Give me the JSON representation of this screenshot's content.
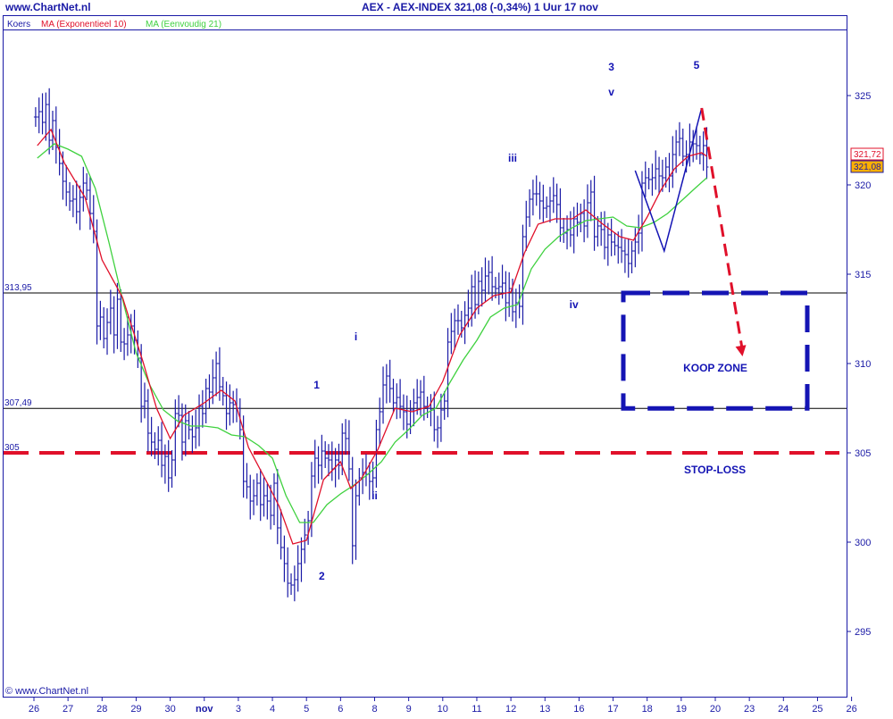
{
  "header": {
    "site": "www.ChartNet.nl",
    "title": "AEX - AEX-INDEX    321,08 (-0,34%)    1 Uur  17 nov"
  },
  "footer": {
    "copyright": "© www.ChartNet.nl"
  },
  "chart_data": {
    "type": "line",
    "legend": [
      {
        "label": "Koers",
        "color": "#1a1aa6"
      },
      {
        "label": "MA (Exponentieel 10)",
        "color": "#e0102a"
      },
      {
        "label": "MA (Eenvoudig 21)",
        "color": "#3fd13f"
      }
    ],
    "x_tick_labels": [
      "26",
      "27",
      "28",
      "29",
      "30",
      "nov",
      "3",
      "4",
      "5",
      "6",
      "8",
      "9",
      "10",
      "11",
      "12",
      "13",
      "16",
      "17",
      "18",
      "19",
      "20",
      "23",
      "24",
      "25",
      "26"
    ],
    "y_ticks": [
      295,
      300,
      305,
      310,
      315,
      320,
      325
    ],
    "ylim": [
      291,
      328.5
    ],
    "price_boxes": [
      {
        "value": "321,72",
        "color": "#e0102a",
        "fill": "#ffffff"
      },
      {
        "value": "321,08",
        "color": "#1a1aa6",
        "fill": "#ffb000"
      }
    ],
    "horizontal_levels": [
      {
        "value": 313.95,
        "label": "313,95",
        "color": "#000000"
      },
      {
        "value": 307.49,
        "label": "307,49",
        "color": "#000000"
      },
      {
        "value": 305,
        "label": "305",
        "color": "#e0102a",
        "dashed": true,
        "text": "STOP-LOSS"
      }
    ],
    "wave_labels": [
      {
        "text": "1",
        "x": 8.3,
        "y": 308.6
      },
      {
        "text": "2",
        "x": 8.45,
        "y": 297.9
      },
      {
        "text": "3",
        "x": 16.95,
        "y": 326.4
      },
      {
        "text": "5",
        "x": 19.45,
        "y": 326.5
      },
      {
        "text": "i",
        "x": 9.45,
        "y": 311.3
      },
      {
        "text": "ii",
        "x": 10.0,
        "y": 302.4
      },
      {
        "text": "iii",
        "x": 14.05,
        "y": 321.3
      },
      {
        "text": "iv",
        "x": 15.85,
        "y": 313.1
      },
      {
        "text": "v",
        "x": 16.95,
        "y": 325.0
      }
    ],
    "koop_zone": {
      "label": "KOOP ZONE",
      "x_range": [
        17.3,
        22.7
      ],
      "y_range": [
        307.49,
        313.95
      ],
      "color": "#1414b4"
    },
    "projection": [
      [
        17.65,
        320.8
      ],
      [
        18.5,
        316.3
      ],
      [
        19.6,
        324.3
      ]
    ],
    "projection_arrow": [
      [
        19.6,
        324.3
      ],
      [
        20.8,
        310.4
      ]
    ],
    "price_series": [
      [
        0.05,
        323.8
      ],
      [
        0.15,
        324.1
      ],
      [
        0.25,
        323.5
      ],
      [
        0.35,
        324.5
      ],
      [
        0.45,
        322.5
      ],
      [
        0.55,
        323.6
      ],
      [
        0.65,
        322.1
      ],
      [
        0.75,
        321.2
      ],
      [
        0.85,
        320.2
      ],
      [
        0.95,
        319.6
      ],
      [
        1.05,
        319.1
      ],
      [
        1.15,
        319.2
      ],
      [
        1.25,
        318.5
      ],
      [
        1.35,
        319.3
      ],
      [
        1.45,
        320.1
      ],
      [
        1.55,
        319.7
      ],
      [
        1.65,
        318.4
      ],
      [
        1.75,
        317.4
      ],
      [
        1.85,
        312.1
      ],
      [
        1.95,
        312.6
      ],
      [
        2.05,
        311.4
      ],
      [
        2.15,
        312.3
      ],
      [
        2.25,
        313.1
      ],
      [
        2.35,
        311.6
      ],
      [
        2.45,
        313.6
      ],
      [
        2.55,
        311.2
      ],
      [
        2.65,
        311.1
      ],
      [
        2.75,
        311.6
      ],
      [
        2.85,
        312.1
      ],
      [
        2.95,
        311.3
      ],
      [
        3.05,
        310.3
      ],
      [
        3.15,
        307.6
      ],
      [
        3.25,
        307.9
      ],
      [
        3.35,
        306.1
      ],
      [
        3.45,
        305.6
      ],
      [
        3.55,
        305.2
      ],
      [
        3.65,
        305.7
      ],
      [
        3.75,
        304.3
      ],
      [
        3.85,
        304.8
      ],
      [
        3.95,
        303.6
      ],
      [
        4.05,
        304.6
      ],
      [
        4.15,
        307.2
      ],
      [
        4.25,
        307.1
      ],
      [
        4.35,
        305.6
      ],
      [
        4.45,
        306.8
      ],
      [
        4.55,
        306.3
      ],
      [
        4.65,
        305.9
      ],
      [
        4.75,
        306.4
      ],
      [
        4.85,
        307.6
      ],
      [
        4.95,
        307.2
      ],
      [
        5.05,
        308.6
      ],
      [
        5.15,
        308.4
      ],
      [
        5.25,
        309.2
      ],
      [
        5.35,
        310.0
      ],
      [
        5.45,
        308.7
      ],
      [
        5.55,
        308.2
      ],
      [
        5.65,
        307.2
      ],
      [
        5.75,
        307.8
      ],
      [
        5.85,
        307.7
      ],
      [
        5.95,
        307.5
      ],
      [
        6.05,
        306.3
      ],
      [
        6.15,
        303.4
      ],
      [
        6.25,
        303.1
      ],
      [
        6.35,
        302.3
      ],
      [
        6.45,
        302.6
      ],
      [
        6.55,
        303.3
      ],
      [
        6.65,
        302.1
      ],
      [
        6.75,
        302.6
      ],
      [
        6.85,
        302.3
      ],
      [
        6.95,
        301.5
      ],
      [
        7.05,
        303.3
      ],
      [
        7.15,
        300.8
      ],
      [
        7.25,
        299.7
      ],
      [
        7.35,
        298.8
      ],
      [
        7.45,
        297.7
      ],
      [
        7.55,
        297.6
      ],
      [
        7.65,
        297.9
      ],
      [
        7.75,
        298.8
      ],
      [
        7.85,
        299.6
      ],
      [
        7.95,
        300.4
      ],
      [
        8.05,
        301.2
      ],
      [
        8.15,
        303.7
      ],
      [
        8.25,
        304.7
      ],
      [
        8.35,
        304.3
      ],
      [
        8.45,
        305.1
      ],
      [
        8.55,
        304.7
      ],
      [
        8.65,
        304.6
      ],
      [
        8.75,
        304.1
      ],
      [
        8.85,
        304.6
      ],
      [
        8.95,
        304.3
      ],
      [
        9.05,
        306.1
      ],
      [
        9.15,
        305.8
      ],
      [
        9.25,
        304.1
      ],
      [
        9.35,
        299.8
      ],
      [
        9.45,
        302.6
      ],
      [
        9.55,
        303.6
      ],
      [
        9.65,
        303.9
      ],
      [
        9.75,
        303.8
      ],
      [
        9.85,
        303.4
      ],
      [
        9.95,
        303.6
      ],
      [
        10.05,
        306.3
      ],
      [
        10.15,
        307.3
      ],
      [
        10.25,
        308.8
      ],
      [
        10.35,
        309.3
      ],
      [
        10.45,
        308.6
      ],
      [
        10.55,
        307.8
      ],
      [
        10.65,
        308.1
      ],
      [
        10.75,
        307.6
      ],
      [
        10.85,
        307.3
      ],
      [
        10.95,
        306.6
      ],
      [
        11.05,
        307.4
      ],
      [
        11.15,
        307.8
      ],
      [
        11.25,
        308.1
      ],
      [
        11.35,
        308.4
      ],
      [
        11.45,
        307.6
      ],
      [
        11.55,
        307.5
      ],
      [
        11.65,
        307.4
      ],
      [
        11.75,
        306.3
      ],
      [
        11.85,
        306.4
      ],
      [
        11.95,
        307.4
      ],
      [
        12.05,
        307.9
      ],
      [
        12.15,
        311.2
      ],
      [
        12.25,
        311.8
      ],
      [
        12.35,
        312.4
      ],
      [
        12.45,
        312.4
      ],
      [
        12.55,
        312.0
      ],
      [
        12.65,
        312.7
      ],
      [
        12.75,
        313.1
      ],
      [
        12.85,
        314.3
      ],
      [
        12.95,
        313.3
      ],
      [
        13.05,
        314.6
      ],
      [
        13.15,
        314.1
      ],
      [
        13.25,
        314.9
      ],
      [
        13.35,
        315.1
      ],
      [
        13.45,
        314.3
      ],
      [
        13.55,
        314.2
      ],
      [
        13.65,
        314.3
      ],
      [
        13.75,
        314.5
      ],
      [
        13.85,
        313.4
      ],
      [
        13.95,
        314.2
      ],
      [
        14.05,
        312.9
      ],
      [
        14.15,
        313.4
      ],
      [
        14.25,
        313.2
      ],
      [
        14.35,
        317.1
      ],
      [
        14.45,
        318.2
      ],
      [
        14.55,
        319.2
      ],
      [
        14.65,
        319.5
      ],
      [
        14.75,
        319.5
      ],
      [
        14.85,
        319.1
      ],
      [
        14.95,
        318.7
      ],
      [
        15.05,
        318.8
      ],
      [
        15.15,
        319.1
      ],
      [
        15.25,
        319.4
      ],
      [
        15.35,
        318.9
      ],
      [
        15.45,
        317.6
      ],
      [
        15.55,
        317.3
      ],
      [
        15.65,
        317.5
      ],
      [
        15.75,
        317.2
      ],
      [
        15.85,
        318.1
      ],
      [
        15.95,
        317.9
      ],
      [
        16.05,
        318.4
      ],
      [
        16.15,
        317.7
      ],
      [
        16.25,
        319.0
      ],
      [
        16.35,
        319.6
      ],
      [
        16.45,
        317.1
      ],
      [
        16.55,
        317.7
      ],
      [
        16.65,
        317.5
      ],
      [
        16.75,
        316.5
      ],
      [
        16.85,
        317.2
      ],
      [
        16.95,
        316.8
      ],
      [
        17.05,
        316.6
      ],
      [
        17.15,
        316.5
      ],
      [
        17.25,
        316.3
      ],
      [
        17.35,
        316.1
      ],
      [
        17.45,
        315.6
      ],
      [
        17.55,
        316.3
      ],
      [
        17.65,
        316.8
      ],
      [
        17.75,
        317.3
      ],
      [
        17.85,
        320.1
      ],
      [
        17.95,
        320.4
      ],
      [
        18.05,
        320.3
      ],
      [
        18.15,
        320.4
      ],
      [
        18.25,
        320.9
      ],
      [
        18.35,
        320.5
      ],
      [
        18.45,
        320.4
      ],
      [
        18.55,
        321.0
      ],
      [
        18.65,
        320.5
      ],
      [
        18.75,
        321.7
      ],
      [
        18.85,
        322.4
      ],
      [
        18.95,
        322.6
      ],
      [
        19.05,
        321.6
      ],
      [
        19.15,
        321.7
      ],
      [
        19.25,
        322.4
      ],
      [
        19.35,
        322.3
      ],
      [
        19.45,
        322.2
      ],
      [
        19.55,
        321.7
      ],
      [
        19.65,
        322.2
      ],
      [
        19.75,
        321.0
      ]
    ],
    "ema10": [
      [
        0.1,
        322.2
      ],
      [
        0.5,
        323.1
      ],
      [
        0.9,
        321.2
      ],
      [
        1.5,
        319.3
      ],
      [
        2.0,
        315.8
      ],
      [
        2.6,
        313.7
      ],
      [
        3.2,
        310.1
      ],
      [
        3.6,
        307.5
      ],
      [
        4.0,
        305.8
      ],
      [
        4.4,
        307.1
      ],
      [
        5.0,
        307.8
      ],
      [
        5.5,
        308.5
      ],
      [
        5.9,
        307.9
      ],
      [
        6.3,
        305.3
      ],
      [
        6.8,
        303.5
      ],
      [
        7.2,
        302.0
      ],
      [
        7.6,
        299.9
      ],
      [
        8.0,
        300.1
      ],
      [
        8.5,
        303.5
      ],
      [
        9.0,
        304.5
      ],
      [
        9.3,
        303.0
      ],
      [
        9.6,
        303.5
      ],
      [
        10.1,
        305.2
      ],
      [
        10.6,
        307.5
      ],
      [
        11.1,
        307.3
      ],
      [
        11.6,
        307.6
      ],
      [
        12.0,
        309.0
      ],
      [
        12.5,
        311.6
      ],
      [
        13.0,
        313.1
      ],
      [
        13.5,
        313.8
      ],
      [
        14.0,
        314.0
      ],
      [
        14.4,
        316.2
      ],
      [
        14.8,
        317.8
      ],
      [
        15.3,
        318.1
      ],
      [
        15.8,
        318.1
      ],
      [
        16.2,
        318.6
      ],
      [
        16.7,
        317.8
      ],
      [
        17.2,
        317.1
      ],
      [
        17.6,
        316.9
      ],
      [
        18.0,
        318.2
      ],
      [
        18.4,
        319.7
      ],
      [
        18.8,
        320.9
      ],
      [
        19.2,
        321.6
      ],
      [
        19.6,
        321.8
      ],
      [
        19.75,
        321.6
      ]
    ],
    "sma21": [
      [
        0.1,
        321.5
      ],
      [
        0.6,
        322.3
      ],
      [
        1.0,
        322.0
      ],
      [
        1.4,
        321.6
      ],
      [
        1.8,
        319.8
      ],
      [
        2.2,
        316.8
      ],
      [
        2.6,
        313.6
      ],
      [
        3.0,
        310.6
      ],
      [
        3.4,
        308.8
      ],
      [
        3.8,
        307.4
      ],
      [
        4.2,
        306.8
      ],
      [
        4.6,
        306.5
      ],
      [
        5.0,
        306.5
      ],
      [
        5.4,
        306.4
      ],
      [
        5.8,
        306.0
      ],
      [
        6.2,
        305.9
      ],
      [
        6.6,
        305.4
      ],
      [
        7.0,
        304.7
      ],
      [
        7.4,
        302.6
      ],
      [
        7.8,
        301.1
      ],
      [
        8.2,
        301.1
      ],
      [
        8.6,
        302.1
      ],
      [
        9.0,
        302.7
      ],
      [
        9.4,
        303.2
      ],
      [
        9.8,
        303.8
      ],
      [
        10.2,
        304.5
      ],
      [
        10.6,
        305.6
      ],
      [
        11.0,
        306.3
      ],
      [
        11.4,
        307.1
      ],
      [
        11.8,
        307.5
      ],
      [
        12.2,
        308.9
      ],
      [
        12.6,
        310.2
      ],
      [
        13.0,
        311.3
      ],
      [
        13.4,
        312.6
      ],
      [
        13.8,
        313.1
      ],
      [
        14.2,
        313.3
      ],
      [
        14.6,
        315.3
      ],
      [
        15.0,
        316.4
      ],
      [
        15.4,
        317.1
      ],
      [
        15.8,
        317.6
      ],
      [
        16.2,
        318.0
      ],
      [
        16.6,
        318.1
      ],
      [
        17.0,
        318.2
      ],
      [
        17.4,
        317.7
      ],
      [
        17.8,
        317.6
      ],
      [
        18.2,
        317.9
      ],
      [
        18.6,
        318.4
      ],
      [
        19.0,
        319.1
      ],
      [
        19.4,
        319.8
      ],
      [
        19.75,
        320.4
      ]
    ]
  }
}
